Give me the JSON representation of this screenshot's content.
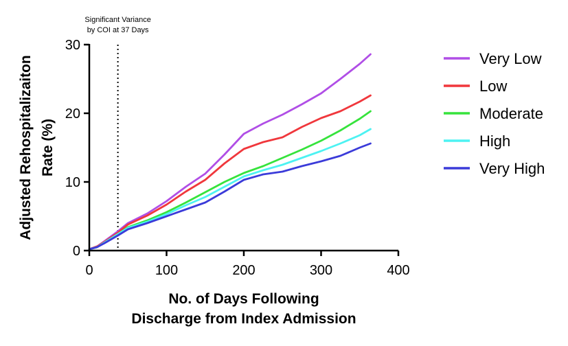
{
  "chart_data": {
    "type": "line",
    "title": "",
    "xlabel_lines": [
      "No. of Days Following",
      "Discharge from Index Admission"
    ],
    "ylabel_lines": [
      "Adjusted Rehospitalizaiton",
      "Rate (%)"
    ],
    "xlim": [
      0,
      400
    ],
    "ylim": [
      0,
      30
    ],
    "x_ticks": [
      0,
      100,
      200,
      300,
      400
    ],
    "y_ticks": [
      0,
      10,
      20,
      30
    ],
    "grid": false,
    "legend_position": "right",
    "annotation": {
      "x": 37,
      "lines": [
        "Significant Variance",
        "by COI at 37 Days"
      ]
    },
    "series": [
      {
        "name": "Very Low",
        "color": "#B04EE6",
        "x": [
          0,
          10,
          20,
          37,
          50,
          75,
          100,
          125,
          150,
          175,
          200,
          225,
          250,
          275,
          300,
          325,
          350,
          364
        ],
        "y": [
          0.2,
          0.6,
          1.4,
          2.8,
          4.0,
          5.4,
          7.2,
          9.3,
          11.2,
          14.0,
          17.0,
          18.5,
          19.8,
          21.3,
          22.9,
          25.0,
          27.2,
          28.6
        ]
      },
      {
        "name": "Low",
        "color": "#F0373C",
        "x": [
          0,
          10,
          20,
          37,
          50,
          75,
          100,
          125,
          150,
          175,
          200,
          225,
          250,
          275,
          300,
          325,
          350,
          364
        ],
        "y": [
          0.2,
          0.6,
          1.3,
          2.6,
          3.8,
          5.1,
          6.7,
          8.6,
          10.3,
          12.7,
          14.8,
          15.8,
          16.5,
          18.0,
          19.3,
          20.3,
          21.7,
          22.6
        ]
      },
      {
        "name": "Moderate",
        "color": "#36E33C",
        "x": [
          0,
          10,
          20,
          37,
          50,
          75,
          100,
          125,
          150,
          175,
          200,
          225,
          250,
          275,
          300,
          325,
          350,
          364
        ],
        "y": [
          0.2,
          0.5,
          1.2,
          2.4,
          3.4,
          4.4,
          5.6,
          7.0,
          8.5,
          10.0,
          11.3,
          12.3,
          13.5,
          14.7,
          16.0,
          17.5,
          19.2,
          20.3
        ]
      },
      {
        "name": "High",
        "color": "#4DF2F2",
        "x": [
          0,
          10,
          20,
          37,
          50,
          75,
          100,
          125,
          150,
          175,
          200,
          225,
          250,
          275,
          300,
          325,
          350,
          364
        ],
        "y": [
          0.2,
          0.5,
          1.2,
          2.4,
          3.3,
          4.2,
          5.3,
          6.6,
          7.8,
          9.3,
          10.8,
          11.7,
          12.5,
          13.5,
          14.5,
          15.6,
          16.8,
          17.7
        ]
      },
      {
        "name": "Very High",
        "color": "#3B3BD9",
        "x": [
          0,
          10,
          20,
          37,
          50,
          75,
          100,
          125,
          150,
          175,
          200,
          225,
          250,
          275,
          300,
          325,
          350,
          364
        ],
        "y": [
          0.2,
          0.5,
          1.1,
          2.2,
          3.1,
          4.0,
          5.0,
          6.0,
          7.0,
          8.6,
          10.3,
          11.1,
          11.5,
          12.3,
          13.0,
          13.8,
          15.0,
          15.6
        ]
      }
    ]
  }
}
